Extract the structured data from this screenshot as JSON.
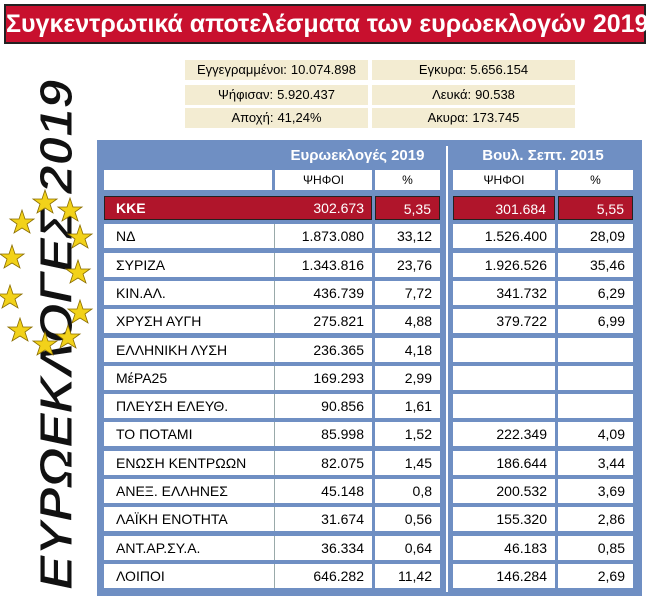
{
  "header": {
    "title": "Συγκεντρωτικά αποτελέσματα των ευρωεκλογών 2019",
    "side_title": "ΕΥΡΩΕΚΛΟΓΕΣ 2019"
  },
  "stats": [
    {
      "label": "Εγγεγραμμένοι:",
      "value": "10.074.898"
    },
    {
      "label": "Εγκυρα:",
      "value": "5.656.154"
    },
    {
      "label": "Ψήφισαν:",
      "value": "5.920.437"
    },
    {
      "label": "Λευκά:",
      "value": "90.538"
    },
    {
      "label": "Αποχή:",
      "value": "41,24%"
    },
    {
      "label": "Ακυρα:",
      "value": "173.745"
    }
  ],
  "table": {
    "group_headers": [
      "Ευρωεκλογές 2019",
      "Βουλ. Σεπτ. 2015"
    ],
    "columns": [
      "ΨΗΦΟΙ",
      "%",
      "ΨΗΦΟΙ",
      "%"
    ],
    "rows": [
      [
        "ΚΚΕ",
        "302.673",
        "5,35",
        "301.684",
        "5,55"
      ],
      [
        "ΝΔ",
        "1.873.080",
        "33,12",
        "1.526.400",
        "28,09"
      ],
      [
        "ΣΥΡΙΖΑ",
        "1.343.816",
        "23,76",
        "1.926.526",
        "35,46"
      ],
      [
        "ΚΙΝ.ΑΛ.",
        "436.739",
        "7,72",
        "341.732",
        "6,29"
      ],
      [
        "ΧΡΥΣΗ ΑΥΓΗ",
        "275.821",
        "4,88",
        "379.722",
        "6,99"
      ],
      [
        "ΕΛΛΗΝΙΚΗ ΛΥΣΗ",
        "236.365",
        "4,18",
        null,
        null
      ],
      [
        "ΜέΡΑ25",
        "169.293",
        "2,99",
        null,
        null
      ],
      [
        "ΠΛΕΥΣΗ ΕΛΕΥΘ.",
        "90.856",
        "1,61",
        null,
        null
      ],
      [
        "ΤΟ ΠΟΤΑΜΙ",
        "85.998",
        "1,52",
        "222.349",
        "4,09"
      ],
      [
        "ΕΝΩΣΗ ΚΕΝΤΡΩΩΝ",
        "82.075",
        "1,45",
        "186.644",
        "3,44"
      ],
      [
        "ΑΝΕΞ. ΕΛΛΗΝΕΣ",
        "45.148",
        "0,8",
        "200.532",
        "3,69"
      ],
      [
        "ΛΑΪΚΗ ΕΝΟΤΗΤΑ",
        "31.674",
        "0,56",
        "155.320",
        "2,86"
      ],
      [
        "ΑΝΤ.ΑΡ.ΣΥ.Α.",
        "36.334",
        "0,64",
        "46.183",
        "0,85"
      ],
      [
        "ΛΟΙΠΟΙ",
        "646.282",
        "11,42",
        "146.284",
        "2,69"
      ]
    ]
  }
}
